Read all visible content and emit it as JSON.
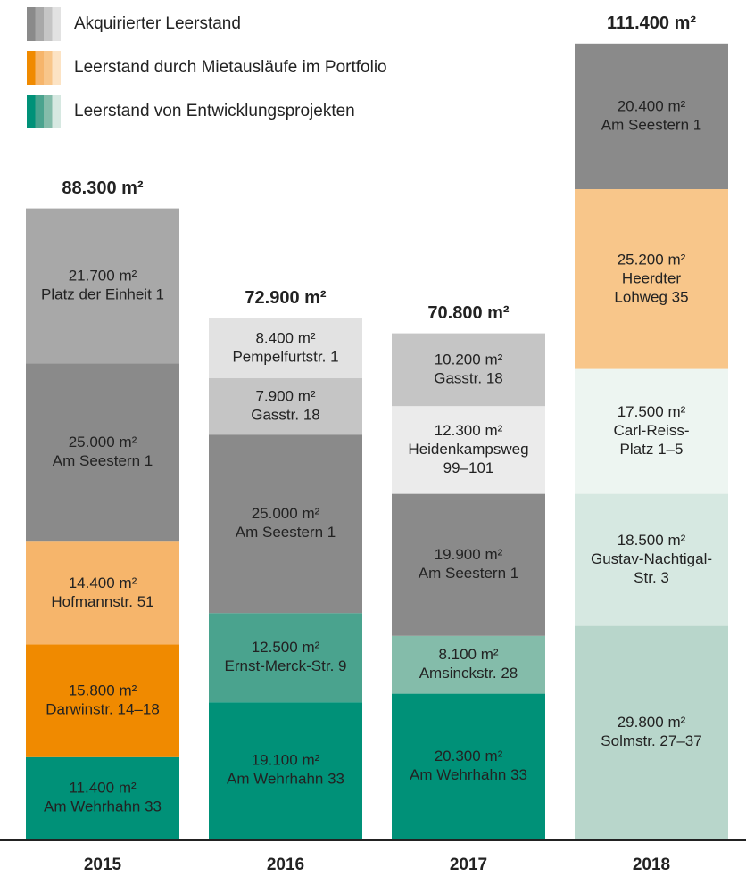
{
  "chart_data": {
    "type": "stacked_bar",
    "unit": "m²",
    "ylim": [
      0,
      117500
    ],
    "legend": [
      {
        "name": "Akquirierter Leerstand",
        "colors": [
          "#8a8a8a",
          "#a8a8a8",
          "#c5c5c5",
          "#e2e2e2"
        ]
      },
      {
        "name": "Leerstand durch Mietausläufe im Portfolio",
        "colors": [
          "#f08a00",
          "#f6b56b",
          "#f8c68a",
          "#fce3c4"
        ]
      },
      {
        "name": "Leerstand von Entwicklungsprojekten",
        "colors": [
          "#009178",
          "#4aa38e",
          "#84bcaa",
          "#d6e8e1"
        ]
      }
    ],
    "bars": [
      {
        "category": "2015",
        "total": 88300,
        "total_label": "88.300 m²",
        "segments": [
          {
            "value": 11400,
            "value_label": "11.400 m²",
            "lines": [
              "Am Wehrhahn 33"
            ],
            "color": "#009178"
          },
          {
            "value": 15800,
            "value_label": "15.800 m²",
            "lines": [
              "Darwinstr. 14–18"
            ],
            "color": "#f08a00"
          },
          {
            "value": 14400,
            "value_label": "14.400 m²",
            "lines": [
              "Hofmannstr. 51"
            ],
            "color": "#f6b56b"
          },
          {
            "value": 25000,
            "value_label": "25.000 m²",
            "lines": [
              "Am Seestern 1"
            ],
            "color": "#8a8a8a"
          },
          {
            "value": 21700,
            "value_label": "21.700 m²",
            "lines": [
              "Platz der Einheit 1"
            ],
            "color": "#a8a8a8"
          }
        ]
      },
      {
        "category": "2016",
        "total": 72900,
        "total_label": "72.900 m²",
        "segments": [
          {
            "value": 19100,
            "value_label": "19.100 m²",
            "lines": [
              "Am Wehrhahn 33"
            ],
            "color": "#009178"
          },
          {
            "value": 12500,
            "value_label": "12.500 m²",
            "lines": [
              "Ernst-Merck-Str. 9"
            ],
            "color": "#4aa38e"
          },
          {
            "value": 25000,
            "value_label": "25.000 m²",
            "lines": [
              "Am Seestern 1"
            ],
            "color": "#8a8a8a"
          },
          {
            "value": 7900,
            "value_label": "7.900 m²",
            "lines": [
              "Gasstr. 18"
            ],
            "color": "#c5c5c5"
          },
          {
            "value": 8400,
            "value_label": "8.400 m²",
            "lines": [
              "Pempelfurtstr. 1"
            ],
            "color": "#e2e2e2"
          }
        ]
      },
      {
        "category": "2017",
        "total": 70800,
        "total_label": "70.800 m²",
        "segments": [
          {
            "value": 20300,
            "value_label": "20.300 m²",
            "lines": [
              "Am Wehrhahn 33"
            ],
            "color": "#009178"
          },
          {
            "value": 8100,
            "value_label": "8.100 m²",
            "lines": [
              "Amsinckstr. 28"
            ],
            "color": "#84bcaa"
          },
          {
            "value": 19900,
            "value_label": "19.900 m²",
            "lines": [
              "Am Seestern 1"
            ],
            "color": "#8a8a8a"
          },
          {
            "value": 12300,
            "value_label": "12.300 m²",
            "lines": [
              "Heidenkampsweg",
              "99–101"
            ],
            "color": "#ebebeb"
          },
          {
            "value": 10200,
            "value_label": "10.200 m²",
            "lines": [
              "Gasstr. 18"
            ],
            "color": "#c5c5c5"
          }
        ]
      },
      {
        "category": "2018",
        "total": 111400,
        "total_label": "111.400 m²",
        "segments": [
          {
            "value": 29800,
            "value_label": "29.800 m²",
            "lines": [
              "Solmstr. 27–37"
            ],
            "color": "#b8d6cb"
          },
          {
            "value": 18500,
            "value_label": "18.500 m²",
            "lines": [
              "Gustav-Nachtigal-",
              "Str. 3"
            ],
            "color": "#d6e8e1"
          },
          {
            "value": 17500,
            "value_label": "17.500 m²",
            "lines": [
              "Carl-Reiss-",
              "Platz 1–5"
            ],
            "color": "#edf5f1"
          },
          {
            "value": 25200,
            "value_label": "25.200 m²",
            "lines": [
              "Heerdter",
              "Lohweg 35"
            ],
            "color": "#f8c68a"
          },
          {
            "value": 20400,
            "value_label": "20.400 m²",
            "lines": [
              "Am Seestern 1"
            ],
            "color": "#8a8a8a"
          }
        ]
      }
    ]
  }
}
